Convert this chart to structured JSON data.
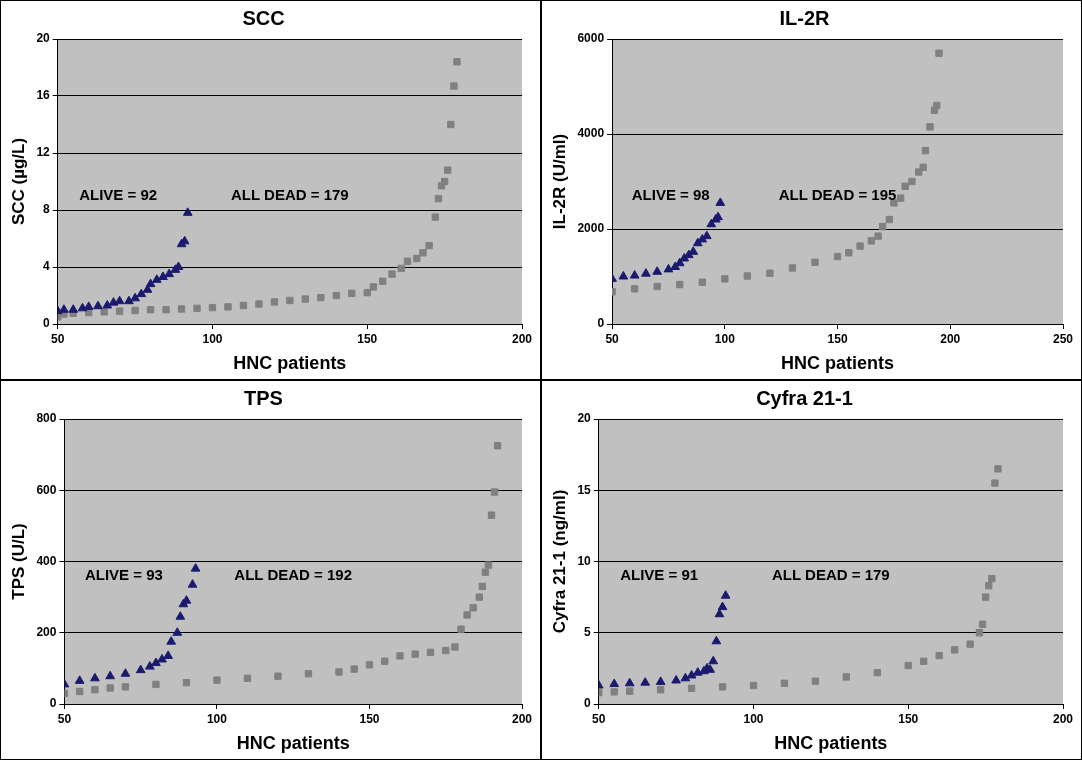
{
  "chart_data": [
    {
      "type": "scatter",
      "title": "SCC",
      "xlabel": "HNC patients",
      "ylabel": "SCC (µg/L)",
      "xlim": [
        50,
        200
      ],
      "xticks": [
        50,
        100,
        150,
        200
      ],
      "ylim": [
        0,
        20
      ],
      "yticks": [
        0,
        4,
        8,
        12,
        16,
        20
      ],
      "grid": "y",
      "series": [
        {
          "color": "#1a1a6e",
          "marker": "triangle",
          "x": [
            50,
            52,
            55,
            58,
            60,
            63,
            66,
            68,
            70,
            73,
            75,
            77,
            79,
            80,
            82,
            84,
            86,
            88,
            89,
            90,
            91,
            92
          ],
          "values": [
            0.9,
            1.0,
            1.0,
            1.1,
            1.2,
            1.25,
            1.3,
            1.5,
            1.6,
            1.6,
            1.8,
            2.1,
            2.4,
            2.8,
            3.1,
            3.3,
            3.5,
            3.8,
            4.0,
            5.6,
            5.8,
            7.8
          ]
        },
        {
          "color": "#808080",
          "marker": "square",
          "x": [
            50,
            52,
            55,
            60,
            65,
            70,
            75,
            80,
            85,
            90,
            95,
            100,
            105,
            110,
            115,
            120,
            125,
            130,
            135,
            140,
            145,
            150,
            152,
            155,
            158,
            161,
            163,
            166,
            168,
            170,
            172,
            173,
            174,
            175,
            176,
            177,
            178,
            179
          ],
          "values": [
            0.5,
            0.7,
            0.75,
            0.8,
            0.85,
            0.9,
            0.95,
            1.0,
            1.0,
            1.05,
            1.1,
            1.15,
            1.2,
            1.3,
            1.4,
            1.55,
            1.65,
            1.75,
            1.85,
            2.0,
            2.15,
            2.2,
            2.6,
            3.0,
            3.5,
            3.9,
            4.4,
            4.6,
            5.0,
            5.5,
            7.5,
            8.8,
            9.7,
            10.0,
            10.8,
            14.0,
            16.7,
            18.4
          ]
        }
      ],
      "annotations": [
        "ALIVE = 92",
        "ALL DEAD = 179"
      ]
    },
    {
      "type": "scatter",
      "title": "IL-2R",
      "xlabel": "HNC patients",
      "ylabel": "IL-2R (U/ml)",
      "xlim": [
        50,
        250
      ],
      "xticks": [
        50,
        100,
        150,
        200,
        250
      ],
      "ylim": [
        0,
        6000
      ],
      "yticks": [
        0,
        2000,
        4000,
        6000
      ],
      "grid": "y",
      "series": [
        {
          "color": "#1a1a6e",
          "marker": "triangle",
          "x": [
            50,
            55,
            60,
            65,
            70,
            75,
            78,
            80,
            82,
            84,
            86,
            88,
            90,
            92,
            94,
            96,
            97,
            98
          ],
          "values": [
            950,
            1000,
            1020,
            1060,
            1100,
            1150,
            1200,
            1280,
            1380,
            1450,
            1520,
            1700,
            1780,
            1850,
            2100,
            2200,
            2250,
            2550
          ]
        },
        {
          "color": "#808080",
          "marker": "square",
          "x": [
            50,
            60,
            70,
            80,
            90,
            100,
            110,
            120,
            130,
            140,
            150,
            155,
            160,
            165,
            168,
            170,
            173,
            175,
            178,
            180,
            183,
            186,
            188,
            189,
            191,
            193,
            194,
            195
          ],
          "values": [
            680,
            740,
            790,
            830,
            880,
            950,
            1010,
            1070,
            1180,
            1300,
            1420,
            1500,
            1640,
            1750,
            1850,
            2050,
            2200,
            2550,
            2650,
            2900,
            3000,
            3200,
            3300,
            3650,
            4150,
            4500,
            4600,
            5700
          ]
        }
      ],
      "annotations": [
        "ALIVE = 98",
        "ALL DEAD = 195"
      ]
    },
    {
      "type": "scatter",
      "title": "TPS",
      "xlabel": "HNC patients",
      "ylabel": "TPS (U/L)",
      "xlim": [
        50,
        200
      ],
      "xticks": [
        50,
        100,
        150,
        200
      ],
      "ylim": [
        0,
        800
      ],
      "yticks": [
        0,
        200,
        400,
        600,
        800
      ],
      "grid": "y",
      "series": [
        {
          "color": "#1a1a6e",
          "marker": "triangle",
          "x": [
            50,
            55,
            60,
            65,
            70,
            75,
            78,
            80,
            82,
            84,
            85,
            87,
            88,
            89,
            90,
            92,
            93
          ],
          "values": [
            55,
            65,
            72,
            78,
            85,
            95,
            105,
            115,
            125,
            135,
            175,
            200,
            245,
            280,
            290,
            335,
            380
          ]
        },
        {
          "color": "#808080",
          "marker": "square",
          "x": [
            50,
            55,
            60,
            65,
            70,
            80,
            90,
            100,
            110,
            120,
            130,
            140,
            145,
            150,
            155,
            160,
            165,
            170,
            175,
            178,
            180,
            182,
            184,
            186,
            187,
            188,
            189,
            190,
            191,
            192
          ],
          "values": [
            30,
            35,
            40,
            45,
            48,
            55,
            60,
            67,
            72,
            78,
            85,
            90,
            98,
            110,
            120,
            135,
            140,
            145,
            150,
            160,
            210,
            250,
            270,
            300,
            330,
            370,
            390,
            530,
            595,
            725
          ]
        }
      ],
      "annotations": [
        "ALIVE = 93",
        "ALL DEAD = 192"
      ]
    },
    {
      "type": "scatter",
      "title": "Cyfra 21-1",
      "xlabel": "HNC patients",
      "ylabel": "Cyfra 21-1 (ng/ml)",
      "xlim": [
        50,
        200
      ],
      "xticks": [
        50,
        100,
        150,
        200
      ],
      "ylim": [
        0,
        20
      ],
      "yticks": [
        0,
        5,
        10,
        15,
        20
      ],
      "grid": "y",
      "series": [
        {
          "color": "#1a1a6e",
          "marker": "triangle",
          "x": [
            50,
            55,
            60,
            65,
            70,
            75,
            78,
            80,
            82,
            84,
            85,
            86,
            87,
            88,
            89,
            90,
            91
          ],
          "values": [
            1.3,
            1.4,
            1.45,
            1.5,
            1.55,
            1.65,
            1.8,
            2.0,
            2.2,
            2.3,
            2.5,
            2.4,
            3.0,
            4.4,
            6.3,
            6.8,
            7.6
          ]
        },
        {
          "color": "#808080",
          "marker": "square",
          "x": [
            50,
            55,
            60,
            70,
            80,
            90,
            100,
            110,
            120,
            130,
            140,
            150,
            155,
            160,
            165,
            170,
            173,
            174,
            175,
            176,
            177,
            178,
            179
          ],
          "values": [
            0.8,
            0.85,
            0.9,
            1.0,
            1.1,
            1.2,
            1.3,
            1.45,
            1.6,
            1.9,
            2.2,
            2.7,
            3.0,
            3.4,
            3.8,
            4.2,
            5.0,
            5.6,
            7.5,
            8.3,
            8.8,
            15.5,
            16.5
          ]
        }
      ],
      "annotations": [
        "ALIVE = 91",
        "ALL DEAD = 179"
      ]
    }
  ]
}
